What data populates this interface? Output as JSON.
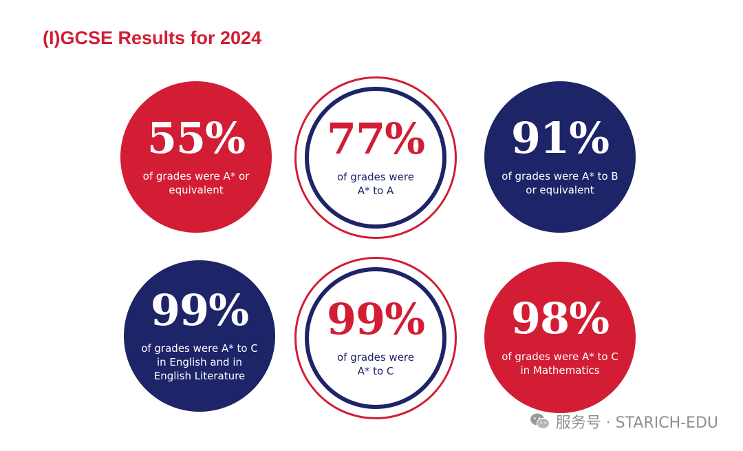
{
  "title": "(I)GCSE Results for 2024",
  "colors": {
    "red": "#d21d34",
    "navy": "#1e2468",
    "white": "#ffffff"
  },
  "stats": [
    {
      "value": "55%",
      "description": "of grades were A* or equivalent",
      "style": "solid-red"
    },
    {
      "value": "77%",
      "description": "of grades were A* to A",
      "style": "ring"
    },
    {
      "value": "91%",
      "description": "of grades were A* to B or equivalent",
      "style": "solid-navy"
    },
    {
      "value": "99%",
      "description": "of grades were A* to C in English and in English Literature",
      "style": "solid-navy"
    },
    {
      "value": "99%",
      "description": "of grades were A* to C",
      "style": "ring"
    },
    {
      "value": "98%",
      "description": "of grades were A* to C in Mathematics",
      "style": "solid-red"
    }
  ],
  "watermark": {
    "icon": "wechat-icon",
    "text": "服务号 · STARICH-EDU"
  }
}
